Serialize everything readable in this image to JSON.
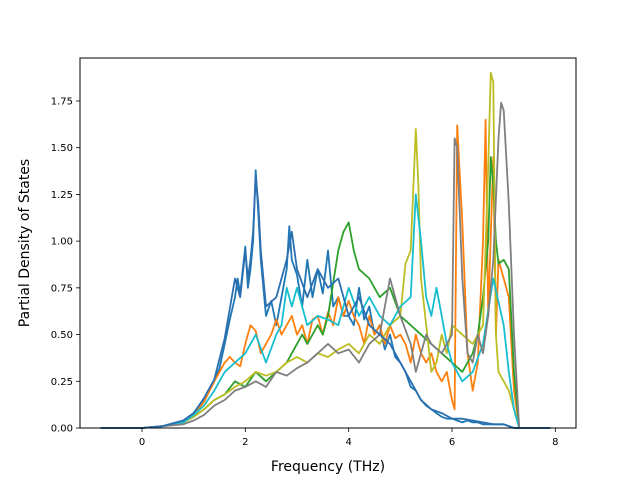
{
  "chart_data": {
    "type": "line",
    "xlabel": "Frequency (THz)",
    "ylabel": "Partial Density of States",
    "xlim": [
      -1.2,
      8.4
    ],
    "ylim": [
      0,
      1.98
    ],
    "xticks": [
      0,
      2,
      4,
      6,
      8
    ],
    "yticks": [
      0.0,
      0.25,
      0.5,
      0.75,
      1.0,
      1.25,
      1.5,
      1.75
    ],
    "ytick_labels": [
      "0.00",
      "0.25",
      "0.50",
      "0.75",
      "1.00",
      "1.25",
      "1.50",
      "1.75"
    ],
    "grid": false,
    "legend": "none",
    "series": [
      {
        "color": "#1f77b4",
        "x": [
          -0.8,
          0,
          0.4,
          0.8,
          1.0,
          1.2,
          1.4,
          1.5,
          1.6,
          1.7,
          1.8,
          1.85,
          1.9,
          1.95,
          2.0,
          2.05,
          2.1,
          2.15,
          2.2,
          2.25,
          2.3,
          2.4,
          2.5,
          2.6,
          2.7,
          2.8,
          2.85,
          2.9,
          3.0,
          3.1,
          3.2,
          3.3,
          3.4,
          3.5,
          3.6,
          3.7,
          3.8,
          3.9,
          4.0,
          4.1,
          4.2,
          4.3,
          4.4,
          4.5,
          4.6,
          4.7,
          4.8,
          4.9,
          5.0,
          5.1,
          5.2,
          5.3,
          5.4,
          5.5,
          5.6,
          5.7,
          5.8,
          5.9,
          6.0,
          6.1,
          6.2,
          6.3,
          6.4,
          6.5,
          6.6,
          6.7,
          6.8,
          6.9,
          7.0,
          7.1,
          7.2,
          7.3,
          7.9
        ],
        "values": [
          0,
          0,
          0.01,
          0.04,
          0.08,
          0.15,
          0.25,
          0.32,
          0.45,
          0.58,
          0.7,
          0.8,
          0.72,
          0.85,
          0.97,
          0.75,
          0.85,
          1.0,
          1.38,
          1.15,
          0.9,
          0.6,
          0.68,
          0.55,
          0.7,
          0.85,
          1.08,
          0.9,
          0.82,
          0.65,
          0.9,
          0.7,
          0.85,
          0.72,
          0.95,
          0.65,
          0.7,
          0.6,
          0.6,
          0.55,
          0.75,
          0.58,
          0.65,
          0.5,
          0.55,
          0.42,
          0.5,
          0.38,
          0.35,
          0.3,
          0.22,
          0.2,
          0.15,
          0.12,
          0.1,
          0.08,
          0.06,
          0.05,
          0.05,
          0.04,
          0.03,
          0.04,
          0.03,
          0.03,
          0.02,
          0.02,
          0.02,
          0.02,
          0.02,
          0.01,
          0.0,
          0,
          0
        ]
      },
      {
        "color": "#ff7f0e",
        "x": [
          -0.8,
          0,
          0.4,
          0.8,
          1.0,
          1.2,
          1.4,
          1.6,
          1.7,
          1.8,
          1.9,
          2.0,
          2.1,
          2.2,
          2.3,
          2.4,
          2.5,
          2.6,
          2.7,
          2.8,
          2.9,
          3.0,
          3.1,
          3.2,
          3.3,
          3.4,
          3.5,
          3.6,
          3.7,
          3.8,
          3.9,
          4.0,
          4.1,
          4.2,
          4.3,
          4.4,
          4.5,
          4.6,
          4.7,
          4.8,
          4.9,
          5.0,
          5.1,
          5.2,
          5.3,
          5.4,
          5.5,
          5.6,
          5.7,
          5.8,
          5.9,
          6.0,
          6.05,
          6.1,
          6.2,
          6.3,
          6.4,
          6.5,
          6.6,
          6.65,
          6.7,
          6.8,
          6.85,
          6.9,
          7.0,
          7.1,
          7.2,
          7.3,
          7.9
        ],
        "values": [
          0,
          0,
          0.01,
          0.03,
          0.07,
          0.14,
          0.25,
          0.35,
          0.38,
          0.35,
          0.33,
          0.45,
          0.55,
          0.52,
          0.4,
          0.45,
          0.5,
          0.58,
          0.5,
          0.55,
          0.6,
          0.5,
          0.55,
          0.45,
          0.58,
          0.6,
          0.5,
          0.62,
          0.55,
          0.7,
          0.6,
          0.68,
          0.6,
          0.55,
          0.45,
          0.6,
          0.5,
          0.55,
          0.45,
          0.55,
          0.48,
          0.5,
          0.45,
          0.35,
          0.5,
          0.4,
          0.35,
          0.4,
          0.3,
          0.25,
          0.3,
          0.15,
          0.1,
          1.62,
          1.1,
          0.4,
          0.2,
          0.35,
          1.0,
          1.65,
          0.6,
          1.45,
          0.5,
          0.9,
          0.8,
          0.7,
          0.2,
          0,
          0
        ]
      },
      {
        "color": "#2ca02c",
        "x": [
          -0.8,
          0,
          0.4,
          0.8,
          1.0,
          1.2,
          1.4,
          1.6,
          1.8,
          2.0,
          2.2,
          2.4,
          2.6,
          2.8,
          3.0,
          3.1,
          3.2,
          3.4,
          3.5,
          3.6,
          3.8,
          3.9,
          4.0,
          4.1,
          4.2,
          4.4,
          4.6,
          4.8,
          5.0,
          5.2,
          5.4,
          5.6,
          5.8,
          6.0,
          6.2,
          6.4,
          6.5,
          6.6,
          6.7,
          6.75,
          6.8,
          6.85,
          6.9,
          7.0,
          7.1,
          7.2,
          7.3,
          7.9
        ],
        "values": [
          0,
          0,
          0.01,
          0.03,
          0.06,
          0.1,
          0.15,
          0.18,
          0.25,
          0.22,
          0.3,
          0.25,
          0.3,
          0.35,
          0.45,
          0.5,
          0.45,
          0.55,
          0.5,
          0.6,
          0.95,
          1.05,
          1.1,
          0.95,
          0.85,
          0.8,
          0.7,
          0.75,
          0.6,
          0.55,
          0.5,
          0.45,
          0.4,
          0.35,
          0.3,
          0.4,
          0.5,
          0.7,
          1.0,
          1.45,
          1.3,
          1.0,
          0.88,
          0.9,
          0.85,
          0.3,
          0,
          0
        ]
      },
      {
        "color": "#bcbd22",
        "x": [
          -0.8,
          0,
          0.4,
          0.8,
          1.0,
          1.2,
          1.4,
          1.6,
          1.8,
          2.0,
          2.2,
          2.4,
          2.6,
          2.8,
          3.0,
          3.2,
          3.4,
          3.6,
          3.8,
          4.0,
          4.2,
          4.4,
          4.6,
          4.8,
          5.0,
          5.1,
          5.2,
          5.3,
          5.35,
          5.4,
          5.5,
          5.6,
          5.7,
          5.8,
          5.9,
          6.0,
          6.2,
          6.4,
          6.6,
          6.7,
          6.75,
          6.8,
          6.85,
          6.9,
          7.0,
          7.1,
          7.2,
          7.3,
          7.9
        ],
        "values": [
          0,
          0,
          0.01,
          0.03,
          0.06,
          0.1,
          0.15,
          0.18,
          0.22,
          0.25,
          0.3,
          0.28,
          0.3,
          0.35,
          0.38,
          0.35,
          0.4,
          0.38,
          0.42,
          0.45,
          0.4,
          0.5,
          0.45,
          0.55,
          0.6,
          0.88,
          0.95,
          1.6,
          1.3,
          0.8,
          0.55,
          0.3,
          0.35,
          0.5,
          0.4,
          0.55,
          0.5,
          0.45,
          0.55,
          1.4,
          1.9,
          1.85,
          0.5,
          0.3,
          0.25,
          0.2,
          0.1,
          0,
          0
        ]
      },
      {
        "color": "#17becf",
        "x": [
          -0.8,
          0,
          0.4,
          0.8,
          1.0,
          1.2,
          1.4,
          1.6,
          1.8,
          2.0,
          2.2,
          2.4,
          2.6,
          2.7,
          2.8,
          2.9,
          3.0,
          3.2,
          3.4,
          3.6,
          3.8,
          4.0,
          4.2,
          4.4,
          4.6,
          4.8,
          5.0,
          5.2,
          5.3,
          5.4,
          5.5,
          5.6,
          5.7,
          5.8,
          5.9,
          6.0,
          6.2,
          6.4,
          6.6,
          6.8,
          7.0,
          7.1,
          7.2,
          7.3,
          7.9
        ],
        "values": [
          0,
          0,
          0.01,
          0.03,
          0.07,
          0.12,
          0.2,
          0.3,
          0.35,
          0.4,
          0.5,
          0.35,
          0.5,
          0.55,
          0.75,
          0.65,
          0.75,
          0.55,
          0.6,
          0.58,
          0.55,
          0.75,
          0.6,
          0.7,
          0.6,
          0.55,
          0.65,
          0.7,
          1.25,
          1.0,
          0.7,
          0.6,
          0.75,
          0.6,
          0.45,
          0.35,
          0.25,
          0.3,
          0.45,
          0.8,
          0.55,
          0.3,
          0.1,
          0,
          0
        ]
      },
      {
        "color": "#7f7f7f",
        "x": [
          -0.8,
          0,
          0.4,
          0.8,
          1.0,
          1.2,
          1.4,
          1.6,
          1.8,
          2.0,
          2.2,
          2.4,
          2.6,
          2.8,
          3.0,
          3.2,
          3.4,
          3.6,
          3.8,
          4.0,
          4.2,
          4.4,
          4.6,
          4.8,
          5.0,
          5.2,
          5.3,
          5.4,
          5.5,
          5.6,
          5.8,
          5.9,
          6.0,
          6.05,
          6.1,
          6.2,
          6.3,
          6.4,
          6.5,
          6.6,
          6.7,
          6.8,
          6.9,
          6.95,
          7.0,
          7.1,
          7.2,
          7.3,
          7.9
        ],
        "values": [
          0,
          0,
          0.01,
          0.02,
          0.04,
          0.07,
          0.12,
          0.15,
          0.2,
          0.22,
          0.25,
          0.22,
          0.3,
          0.28,
          0.32,
          0.35,
          0.4,
          0.45,
          0.4,
          0.42,
          0.35,
          0.45,
          0.5,
          0.8,
          0.6,
          0.45,
          0.3,
          0.4,
          0.5,
          0.45,
          0.4,
          0.45,
          0.5,
          1.55,
          1.5,
          0.8,
          0.4,
          0.35,
          0.5,
          0.4,
          0.6,
          0.9,
          1.55,
          1.74,
          1.7,
          1.2,
          0.5,
          0,
          0
        ]
      },
      {
        "color": "#2b6fb0",
        "x": [
          -0.8,
          0,
          0.4,
          0.8,
          1.0,
          1.2,
          1.4,
          1.6,
          1.8,
          1.9,
          2.0,
          2.05,
          2.1,
          2.15,
          2.2,
          2.25,
          2.3,
          2.4,
          2.6,
          2.8,
          2.9,
          3.0,
          3.2,
          3.4,
          3.6,
          3.8,
          4.0,
          4.2,
          4.4,
          4.6,
          4.8,
          5.0,
          5.2,
          5.3,
          5.4,
          5.6,
          5.8,
          6.0,
          6.2,
          6.4,
          6.6,
          6.8,
          7.0,
          7.2,
          7.3,
          7.9
        ],
        "values": [
          0,
          0,
          0.01,
          0.04,
          0.08,
          0.16,
          0.26,
          0.48,
          0.8,
          0.7,
          0.95,
          0.8,
          0.9,
          1.05,
          1.35,
          1.2,
          0.95,
          0.65,
          0.7,
          0.9,
          1.05,
          0.85,
          0.7,
          0.85,
          0.75,
          0.8,
          0.6,
          0.7,
          0.55,
          0.5,
          0.45,
          0.35,
          0.25,
          0.2,
          0.15,
          0.1,
          0.08,
          0.05,
          0.05,
          0.04,
          0.03,
          0.02,
          0.02,
          0.0,
          0,
          0
        ]
      }
    ]
  }
}
